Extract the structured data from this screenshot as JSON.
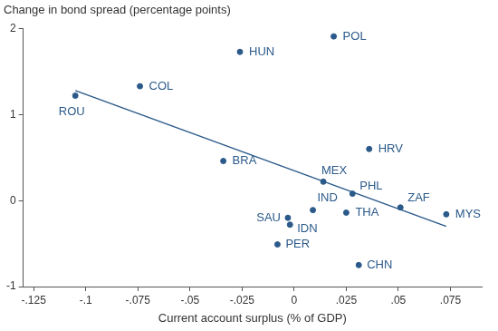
{
  "chart_data": {
    "type": "scatter",
    "y_label": "Change in bond spread (percentage points)",
    "x_label": "Current account surplus (% of GDP)",
    "labels": [
      "ROU",
      "COL",
      "HUN",
      "POL",
      "BRA",
      "MEX",
      "HRV",
      "PHL",
      "ZAF",
      "MYS",
      "IND",
      "THA",
      "SAU",
      "IDN",
      "PER",
      "CHN"
    ],
    "x": [
      -0.105,
      -0.074,
      -0.026,
      0.019,
      -0.034,
      0.014,
      0.036,
      0.028,
      0.051,
      0.073,
      0.009,
      0.025,
      -0.003,
      -0.002,
      -0.008,
      0.031
    ],
    "values": [
      1.22,
      1.33,
      1.73,
      1.91,
      0.46,
      0.22,
      0.6,
      0.08,
      -0.08,
      -0.16,
      -0.11,
      -0.14,
      -0.2,
      -0.28,
      -0.51,
      -0.75
    ],
    "color": "#2b5a8a",
    "marker": "circle",
    "trend": {
      "x": [
        -0.105,
        0.073
      ],
      "values": [
        1.28,
        -0.3
      ],
      "color": "#2b5a8a",
      "line_style": "solid"
    },
    "xlim": [
      -0.13,
      0.09
    ],
    "xticks": [
      {
        "value": -0.125,
        "label": "-.125"
      },
      {
        "value": -0.1,
        "label": "-.1"
      },
      {
        "value": -0.075,
        "label": "-.075"
      },
      {
        "value": -0.05,
        "label": "-.05"
      },
      {
        "value": -0.025,
        "label": "-.025"
      },
      0,
      {
        "value": 0.025,
        "label": ".025"
      },
      {
        "value": 0.05,
        "label": ".05"
      },
      {
        "value": 0.075,
        "label": ".075"
      }
    ],
    "ylim": [
      -1,
      2
    ],
    "yticks": [
      -1,
      0,
      1,
      2
    ],
    "grid": false
  }
}
